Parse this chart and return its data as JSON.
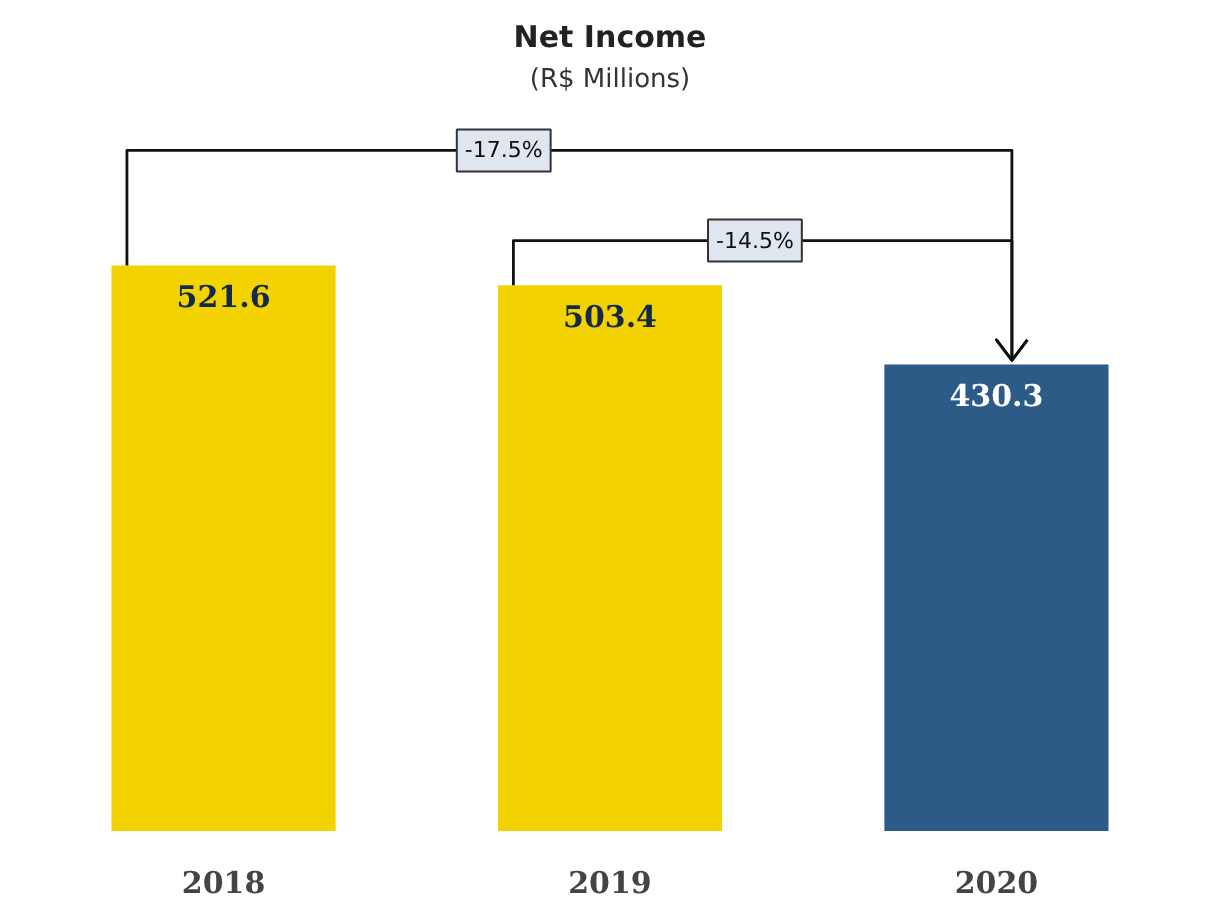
{
  "chart_data": {
    "type": "bar",
    "title": "Net Income",
    "subtitle": "(R$ Millions)",
    "categories": [
      "2018",
      "2019",
      "2020"
    ],
    "values": [
      521.6,
      503.4,
      430.3
    ],
    "colors": [
      "#f2d200",
      "#f2d200",
      "#2b5b86"
    ],
    "data_labels": true,
    "annotations": [
      "-17.5%",
      "-14.5%"
    ]
  }
}
